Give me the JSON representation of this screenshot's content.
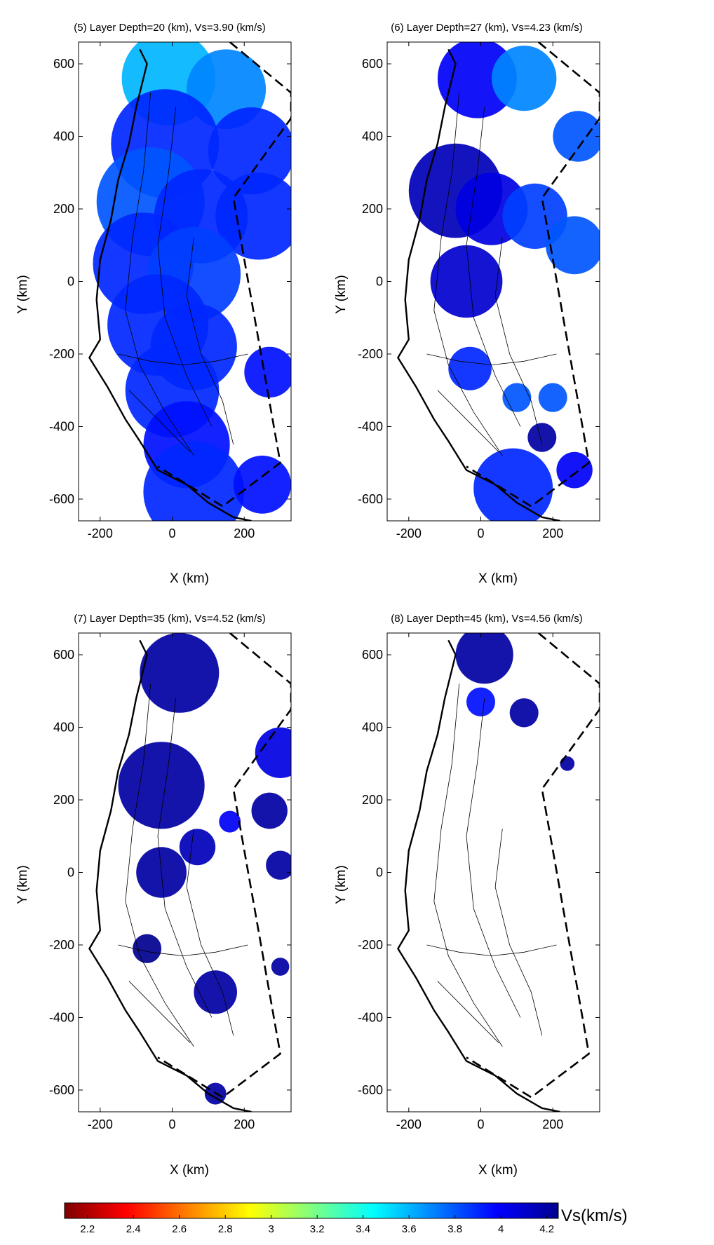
{
  "chart_data": [
    {
      "type": "heatmap",
      "title": "(5) Layer Depth=20 (km), Vs=3.90 (km/s)",
      "xlabel": "X (km)",
      "ylabel": "Y (km)",
      "xlim": [
        -260,
        330
      ],
      "ylim": [
        -660,
        660
      ],
      "xticks": [
        -200,
        0,
        200
      ],
      "yticks": [
        600,
        400,
        200,
        0,
        -200,
        -400,
        -600
      ],
      "blobs": [
        {
          "x": -10,
          "y": 560,
          "r": 130,
          "vs": 3.6
        },
        {
          "x": 150,
          "y": 530,
          "r": 110,
          "vs": 3.7
        },
        {
          "x": -20,
          "y": 380,
          "r": 150,
          "vs": 3.9
        },
        {
          "x": 220,
          "y": 360,
          "r": 120,
          "vs": 3.9
        },
        {
          "x": -60,
          "y": 220,
          "r": 150,
          "vs": 3.8
        },
        {
          "x": 80,
          "y": 180,
          "r": 130,
          "vs": 3.9
        },
        {
          "x": 240,
          "y": 180,
          "r": 120,
          "vs": 3.9
        },
        {
          "x": -80,
          "y": 50,
          "r": 140,
          "vs": 3.9
        },
        {
          "x": 60,
          "y": 20,
          "r": 130,
          "vs": 3.85
        },
        {
          "x": -40,
          "y": -120,
          "r": 140,
          "vs": 3.9
        },
        {
          "x": 60,
          "y": -180,
          "r": 120,
          "vs": 3.9
        },
        {
          "x": 270,
          "y": -250,
          "r": 70,
          "vs": 3.95
        },
        {
          "x": 0,
          "y": -300,
          "r": 130,
          "vs": 3.9
        },
        {
          "x": 40,
          "y": -450,
          "r": 120,
          "vs": 3.95
        },
        {
          "x": 60,
          "y": -580,
          "r": 140,
          "vs": 3.9
        },
        {
          "x": 250,
          "y": -560,
          "r": 80,
          "vs": 3.95
        }
      ]
    },
    {
      "type": "heatmap",
      "title": "(6) Layer Depth=27 (km), Vs=4.23 (km/s)",
      "xlabel": "X (km)",
      "ylabel": "Y (km)",
      "xlim": [
        -260,
        330
      ],
      "ylim": [
        -660,
        660
      ],
      "xticks": [
        -200,
        0,
        200
      ],
      "yticks": [
        600,
        400,
        200,
        0,
        -200,
        -400,
        -600
      ],
      "blobs": [
        {
          "x": -10,
          "y": 560,
          "r": 110,
          "vs": 4.0
        },
        {
          "x": 120,
          "y": 560,
          "r": 90,
          "vs": 3.7
        },
        {
          "x": 270,
          "y": 400,
          "r": 70,
          "vs": 3.8
        },
        {
          "x": -70,
          "y": 250,
          "r": 130,
          "vs": 4.15
        },
        {
          "x": 30,
          "y": 200,
          "r": 100,
          "vs": 4.05
        },
        {
          "x": 150,
          "y": 180,
          "r": 90,
          "vs": 3.85
        },
        {
          "x": 260,
          "y": 100,
          "r": 80,
          "vs": 3.8
        },
        {
          "x": -40,
          "y": 0,
          "r": 100,
          "vs": 4.1
        },
        {
          "x": -30,
          "y": -240,
          "r": 60,
          "vs": 3.9
        },
        {
          "x": 100,
          "y": -320,
          "r": 40,
          "vs": 3.8
        },
        {
          "x": 200,
          "y": -320,
          "r": 40,
          "vs": 3.8
        },
        {
          "x": 170,
          "y": -430,
          "r": 40,
          "vs": 4.2
        },
        {
          "x": 90,
          "y": -570,
          "r": 110,
          "vs": 3.9
        },
        {
          "x": 260,
          "y": -520,
          "r": 50,
          "vs": 4.0
        }
      ]
    },
    {
      "type": "heatmap",
      "title": "(7) Layer Depth=35 (km), Vs=4.52 (km/s)",
      "xlabel": "X (km)",
      "ylabel": "Y (km)",
      "xlim": [
        -260,
        330
      ],
      "ylim": [
        -660,
        660
      ],
      "xticks": [
        -200,
        0,
        200
      ],
      "yticks": [
        600,
        400,
        200,
        0,
        -200,
        -400,
        -600
      ],
      "blobs": [
        {
          "x": 20,
          "y": 550,
          "r": 110,
          "vs": 4.2
        },
        {
          "x": -30,
          "y": 240,
          "r": 120,
          "vs": 4.2
        },
        {
          "x": 300,
          "y": 330,
          "r": 70,
          "vs": 4.05
        },
        {
          "x": 270,
          "y": 170,
          "r": 50,
          "vs": 4.2
        },
        {
          "x": 160,
          "y": 140,
          "r": 30,
          "vs": 4.0
        },
        {
          "x": 70,
          "y": 70,
          "r": 50,
          "vs": 4.15
        },
        {
          "x": -30,
          "y": 0,
          "r": 70,
          "vs": 4.2
        },
        {
          "x": 300,
          "y": 20,
          "r": 40,
          "vs": 4.2
        },
        {
          "x": -70,
          "y": -210,
          "r": 40,
          "vs": 4.25
        },
        {
          "x": 120,
          "y": -330,
          "r": 60,
          "vs": 4.2
        },
        {
          "x": 300,
          "y": -260,
          "r": 25,
          "vs": 4.2
        },
        {
          "x": 120,
          "y": -610,
          "r": 30,
          "vs": 4.2
        }
      ]
    },
    {
      "type": "heatmap",
      "title": "(8) Layer Depth=45 (km), Vs=4.56 (km/s)",
      "xlabel": "X (km)",
      "ylabel": "Y (km)",
      "xlim": [
        -260,
        330
      ],
      "ylim": [
        -660,
        660
      ],
      "xticks": [
        -200,
        0,
        200
      ],
      "yticks": [
        600,
        400,
        200,
        0,
        -200,
        -400,
        -600
      ],
      "blobs": [
        {
          "x": 10,
          "y": 600,
          "r": 80,
          "vs": 4.2
        },
        {
          "x": 0,
          "y": 470,
          "r": 40,
          "vs": 3.95
        },
        {
          "x": 120,
          "y": 440,
          "r": 40,
          "vs": 4.2
        },
        {
          "x": 240,
          "y": 300,
          "r": 20,
          "vs": 4.2
        }
      ]
    }
  ],
  "colorbar": {
    "label": "Vs(km/s)",
    "min": 2.1,
    "max": 4.25,
    "ticks": [
      "2.2",
      "2.4",
      "2.6",
      "2.8",
      "3",
      "3.2",
      "3.4",
      "3.6",
      "3.8",
      "4",
      "4.2"
    ],
    "colormap": [
      "#7f0000",
      "#ff0000",
      "#ff8000",
      "#ffff00",
      "#80ff80",
      "#00ffff",
      "#0080ff",
      "#0000ff",
      "#00008f"
    ]
  }
}
